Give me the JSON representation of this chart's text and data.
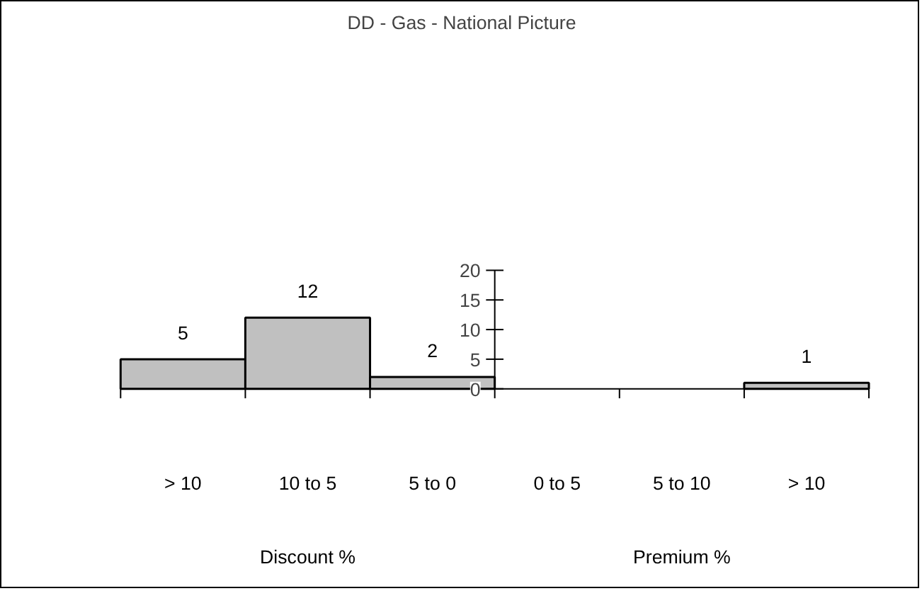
{
  "chart_data": {
    "type": "bar",
    "title": "DD - Gas - National Picture",
    "categories": [
      "> 10",
      "10 to 5",
      "5 to 0",
      "0 to 5",
      "5 to 10",
      "> 10"
    ],
    "values": [
      5,
      12,
      2,
      0,
      0,
      1
    ],
    "value_labels": [
      "5",
      "12",
      "2",
      null,
      null,
      "1"
    ],
    "color": "#c0c0c0",
    "ylim": [
      0,
      20
    ],
    "yticks": [
      0,
      5,
      10,
      15,
      20
    ],
    "grid": false,
    "annotations": [
      "Discount %",
      "Premium %"
    ]
  }
}
